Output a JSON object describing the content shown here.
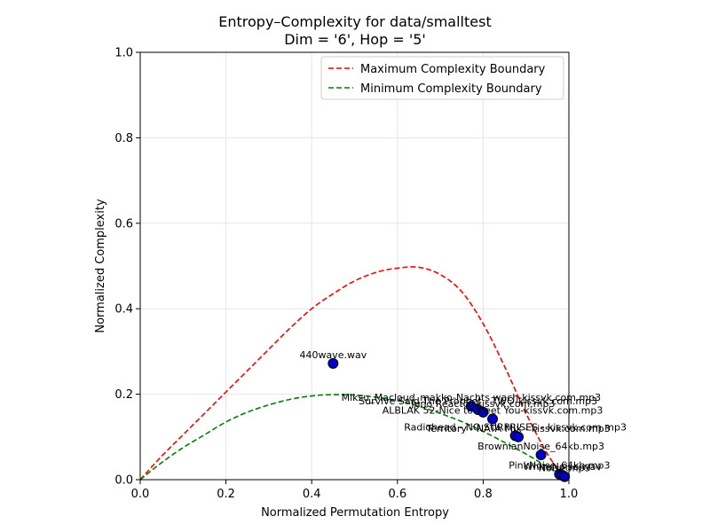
{
  "chart_data": {
    "type": "scatter",
    "title": "Entropy–Complexity for data/smalltest",
    "subtitle": "Dim = '6', Hop = '5'",
    "xlabel": "Normalized Permutation Entropy",
    "ylabel": "Normalized Complexity",
    "xlim": [
      0.0,
      1.0
    ],
    "ylim": [
      0.0,
      1.0
    ],
    "xticks": [
      "0.0",
      "0.2",
      "0.4",
      "0.6",
      "0.8",
      "1.0"
    ],
    "yticks": [
      "0.0",
      "0.2",
      "0.4",
      "0.6",
      "0.8",
      "1.0"
    ],
    "grid": true,
    "legend_position": "top-right",
    "series": [
      {
        "name": "Maximum Complexity Boundary",
        "kind": "line",
        "style": "dashed",
        "color": "#ff0000",
        "x": [
          0.0,
          0.05,
          0.1,
          0.15,
          0.2,
          0.25,
          0.3,
          0.35,
          0.4,
          0.45,
          0.5,
          0.55,
          0.6,
          0.65,
          0.7,
          0.75,
          0.8,
          0.85,
          0.9,
          0.95,
          0.98,
          1.0
        ],
        "y": [
          0.0,
          0.055,
          0.105,
          0.155,
          0.205,
          0.255,
          0.305,
          0.355,
          0.4,
          0.435,
          0.465,
          0.485,
          0.495,
          0.497,
          0.48,
          0.44,
          0.365,
          0.265,
          0.155,
          0.06,
          0.02,
          0.0
        ]
      },
      {
        "name": "Minimum Complexity Boundary",
        "kind": "line",
        "style": "dashed",
        "color": "#008000",
        "x": [
          0.0,
          0.05,
          0.1,
          0.15,
          0.2,
          0.25,
          0.3,
          0.35,
          0.4,
          0.45,
          0.5,
          0.55,
          0.6,
          0.65,
          0.7,
          0.75,
          0.8,
          0.85,
          0.9,
          0.95,
          1.0
        ],
        "y": [
          0.0,
          0.04,
          0.075,
          0.105,
          0.135,
          0.158,
          0.175,
          0.188,
          0.196,
          0.199,
          0.198,
          0.193,
          0.185,
          0.172,
          0.155,
          0.136,
          0.113,
          0.087,
          0.06,
          0.03,
          0.0
        ]
      }
    ],
    "points": [
      {
        "label": "440wave.wav",
        "x": 0.45,
        "y": 0.272
      },
      {
        "label": "Miksu_Macloud_makko-Nachts wach-kissvk.com.mp3",
        "x": 0.772,
        "y": 0.172
      },
      {
        "label": "Survive Said The Prophet - TWO-kissvk.com.mp3",
        "x": 0.788,
        "y": 0.164
      },
      {
        "label": "Juno Reactor kissvk.com.mp3",
        "x": 0.8,
        "y": 0.158
      },
      {
        "label": "ALBLAK 52-Nice to Meet You-kissvk.com.mp3",
        "x": 0.822,
        "y": 0.142
      },
      {
        "label": "Radiohead - NO SURPRISES - kissvk.com.mp3",
        "x": 0.875,
        "y": 0.103
      },
      {
        "label": "Territory - NATA Mix - kissvk.com.mp3",
        "x": 0.882,
        "y": 0.1
      },
      {
        "label": "BrownianNoise_64kb.mp3",
        "x": 0.935,
        "y": 0.058
      },
      {
        "label": "PinkNoise_64kb.mp3",
        "x": 0.978,
        "y": 0.013
      },
      {
        "label": "WhiteNoise.wav",
        "x": 0.985,
        "y": 0.01
      },
      {
        "label": "Noise.mp3",
        "x": 0.99,
        "y": 0.007
      }
    ],
    "point_color": "#0000cd",
    "point_edge_color": "#000000"
  }
}
